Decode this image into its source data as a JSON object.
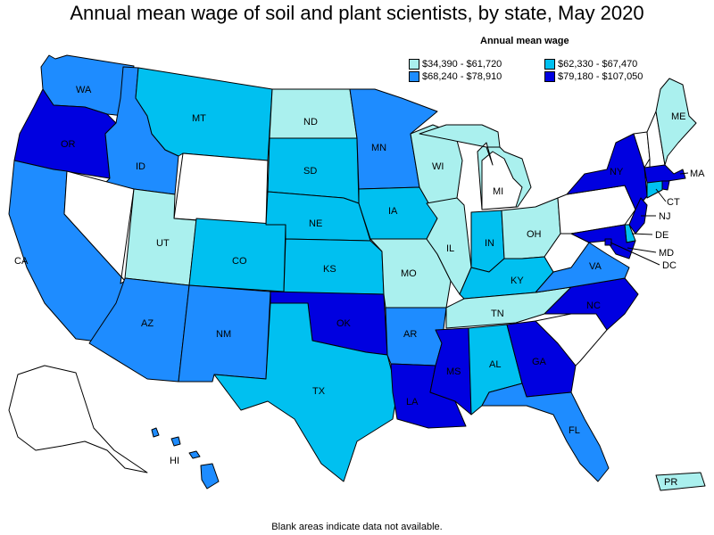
{
  "title": "Annual mean wage of soil and plant scientists, by state, May 2020",
  "legend": {
    "title": "Annual mean wage",
    "items": [
      {
        "label": "$34,390 - $61,720",
        "color": "#aaf0ee"
      },
      {
        "label": "$62,330 - $67,470",
        "color": "#00c0f0"
      },
      {
        "label": "$68,240 - $78,910",
        "color": "#1e8cff"
      },
      {
        "label": "$79,180 - $107,050",
        "color": "#0000e0"
      }
    ]
  },
  "footnote": "Blank areas indicate data not available.",
  "colors": {
    "nodata": "#ffffff",
    "border": "#000000"
  },
  "states": [
    {
      "abbr": "WA",
      "cls": 2
    },
    {
      "abbr": "OR",
      "cls": 3
    },
    {
      "abbr": "CA",
      "cls": 2
    },
    {
      "abbr": "ID",
      "cls": 2
    },
    {
      "abbr": "NV",
      "cls": -1
    },
    {
      "abbr": "MT",
      "cls": 1
    },
    {
      "abbr": "WY",
      "cls": -1
    },
    {
      "abbr": "UT",
      "cls": 0
    },
    {
      "abbr": "AZ",
      "cls": 2
    },
    {
      "abbr": "CO",
      "cls": 1
    },
    {
      "abbr": "NM",
      "cls": 2
    },
    {
      "abbr": "ND",
      "cls": 0
    },
    {
      "abbr": "SD",
      "cls": 1
    },
    {
      "abbr": "NE",
      "cls": 1
    },
    {
      "abbr": "KS",
      "cls": 1
    },
    {
      "abbr": "OK",
      "cls": 3
    },
    {
      "abbr": "TX",
      "cls": 1
    },
    {
      "abbr": "MN",
      "cls": 2
    },
    {
      "abbr": "IA",
      "cls": 1
    },
    {
      "abbr": "MO",
      "cls": 0
    },
    {
      "abbr": "AR",
      "cls": 2
    },
    {
      "abbr": "LA",
      "cls": 3
    },
    {
      "abbr": "WI",
      "cls": 0
    },
    {
      "abbr": "IL",
      "cls": 0
    },
    {
      "abbr": "MI",
      "cls": 0
    },
    {
      "abbr": "IN",
      "cls": 1
    },
    {
      "abbr": "OH",
      "cls": 0
    },
    {
      "abbr": "KY",
      "cls": 1
    },
    {
      "abbr": "TN",
      "cls": 0
    },
    {
      "abbr": "MS",
      "cls": 3
    },
    {
      "abbr": "AL",
      "cls": 1
    },
    {
      "abbr": "GA",
      "cls": 3
    },
    {
      "abbr": "FL",
      "cls": 2
    },
    {
      "abbr": "SC",
      "cls": -1
    },
    {
      "abbr": "NC",
      "cls": 3
    },
    {
      "abbr": "VA",
      "cls": 2
    },
    {
      "abbr": "WV",
      "cls": -1
    },
    {
      "abbr": "PA",
      "cls": -1
    },
    {
      "abbr": "NY",
      "cls": 3
    },
    {
      "abbr": "VT",
      "cls": -1
    },
    {
      "abbr": "NH",
      "cls": -1
    },
    {
      "abbr": "ME",
      "cls": 0
    },
    {
      "abbr": "MA",
      "cls": 3
    },
    {
      "abbr": "RI",
      "cls": 3
    },
    {
      "abbr": "CT",
      "cls": 1
    },
    {
      "abbr": "NJ",
      "cls": 3
    },
    {
      "abbr": "DE",
      "cls": 1
    },
    {
      "abbr": "MD",
      "cls": 3
    },
    {
      "abbr": "DC",
      "cls": 3
    },
    {
      "abbr": "AK",
      "cls": -1
    },
    {
      "abbr": "HI",
      "cls": 2
    },
    {
      "abbr": "PR",
      "cls": 0
    }
  ]
}
